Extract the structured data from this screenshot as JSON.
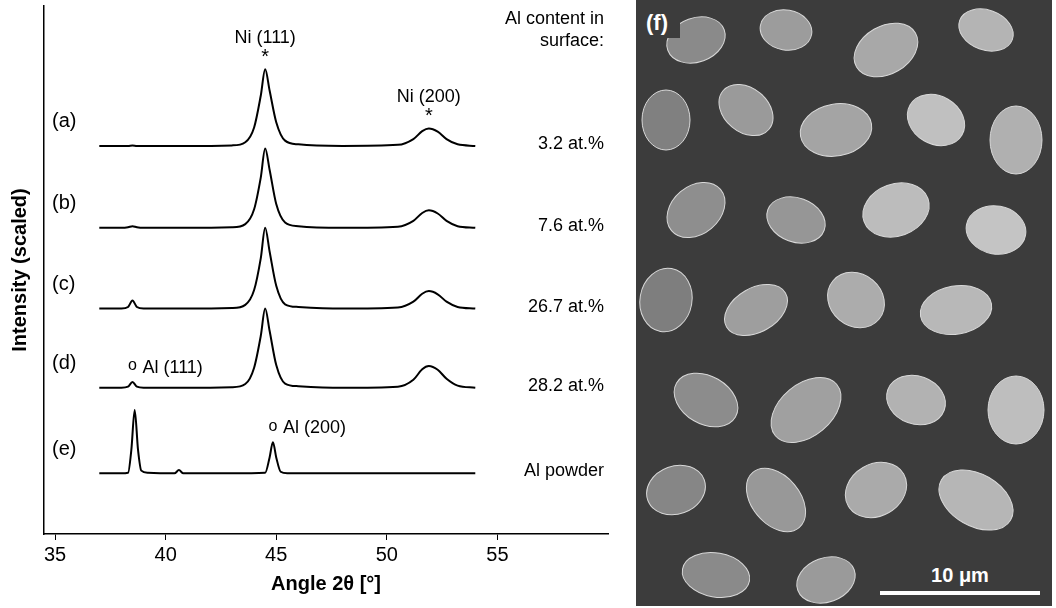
{
  "chart_data": {
    "type": "line",
    "x_label": "Angle 2θ [°]",
    "y_label": "Intensity (scaled)",
    "xlim": [
      34.5,
      60
    ],
    "xticks": [
      35,
      40,
      45,
      50,
      55
    ],
    "ylim": [
      0,
      100
    ],
    "grid": false,
    "tick_labels": "x",
    "color": "#000000",
    "annotation_title": "Al content in surface:",
    "series": [
      {
        "name": "(a)",
        "annotation": "3.2 at.%",
        "x": [
          37,
          38,
          38.3,
          38.5,
          38.7,
          39,
          41,
          43,
          43.6,
          44.0,
          44.3,
          44.5,
          44.7,
          45.0,
          45.4,
          46,
          48,
          50.5,
          51.2,
          51.6,
          51.9,
          52.3,
          52.7,
          53.2,
          54
        ],
        "values": [
          73.5,
          73.5,
          73.5,
          73.6,
          73.5,
          73.5,
          73.5,
          73.6,
          74.2,
          77,
          83,
          88,
          84,
          78,
          74.5,
          73.8,
          73.5,
          73.7,
          74.8,
          76.3,
          76.8,
          76.2,
          74.8,
          73.8,
          73.5
        ]
      },
      {
        "name": "(b)",
        "annotation": "7.6 at.%",
        "x": [
          37,
          38,
          38.3,
          38.5,
          38.7,
          39,
          41,
          43,
          43.6,
          44.0,
          44.3,
          44.5,
          44.7,
          45.0,
          45.4,
          46,
          48,
          50.5,
          51.2,
          51.6,
          51.9,
          52.3,
          52.7,
          53.2,
          54
        ],
        "values": [
          58,
          58,
          58.1,
          58.3,
          58.1,
          58,
          58,
          58.1,
          58.7,
          61.5,
          67.5,
          73,
          69,
          62.5,
          59,
          58.3,
          58,
          58.2,
          59.3,
          60.8,
          61.3,
          60.7,
          59.3,
          58.3,
          58
        ]
      },
      {
        "name": "(c)",
        "annotation": "26.7 at.%",
        "x": [
          37,
          38,
          38.3,
          38.5,
          38.7,
          39,
          41,
          43,
          43.6,
          44.0,
          44.3,
          44.5,
          44.7,
          45.0,
          45.4,
          46,
          48,
          50.5,
          51.2,
          51.6,
          51.9,
          52.3,
          52.7,
          53.2,
          54
        ],
        "values": [
          42.7,
          42.7,
          43.0,
          44.2,
          43.0,
          42.7,
          42.7,
          42.8,
          43.4,
          46.2,
          52.2,
          58,
          53.5,
          47,
          43.5,
          43,
          42.7,
          42.9,
          44,
          45.5,
          46,
          45.4,
          44,
          43,
          42.7
        ]
      },
      {
        "name": "(d)",
        "annotation": "28.2 at.%",
        "x": [
          37,
          38,
          38.3,
          38.5,
          38.7,
          39,
          41,
          43,
          43.6,
          44.0,
          44.3,
          44.5,
          44.7,
          45.0,
          45.4,
          46,
          48,
          50.5,
          51.2,
          51.6,
          51.9,
          52.3,
          52.7,
          53.2,
          54
        ],
        "values": [
          27.7,
          27.7,
          27.9,
          28.8,
          27.9,
          27.7,
          27.7,
          27.8,
          28.4,
          31.5,
          37.5,
          42.7,
          38.5,
          32,
          28.5,
          28,
          27.7,
          27.9,
          29.2,
          31.2,
          31.8,
          31.1,
          29.4,
          28.1,
          27.7
        ]
      },
      {
        "name": "(e)",
        "annotation": "Al powder",
        "x": [
          37,
          38,
          38.3,
          38.45,
          38.6,
          38.75,
          38.9,
          39.2,
          40.4,
          40.6,
          40.8,
          43,
          44.5,
          44.7,
          44.85,
          45.0,
          45.2,
          45.5,
          48,
          54
        ],
        "values": [
          11.5,
          11.5,
          11.6,
          16,
          23.5,
          16,
          12,
          11.6,
          11.5,
          12.1,
          11.5,
          11.5,
          11.6,
          14.5,
          17.4,
          14.5,
          11.8,
          11.5,
          11.5,
          11.5
        ]
      }
    ],
    "peaks": [
      {
        "label": "Ni (111)",
        "symbol": "*",
        "x": 44.5,
        "series": "(a)"
      },
      {
        "label": "Ni (200)",
        "symbol": "*",
        "x": 51.9,
        "series": "(a)"
      },
      {
        "label": "Al (111)",
        "symbol": "o",
        "x": 38.5,
        "series": "(d)"
      },
      {
        "label": "Al (200)",
        "symbol": "o",
        "x": 44.85,
        "series": "(e)"
      }
    ]
  },
  "image_panel": {
    "label": "(f)",
    "scale_bar": "10 μm"
  }
}
